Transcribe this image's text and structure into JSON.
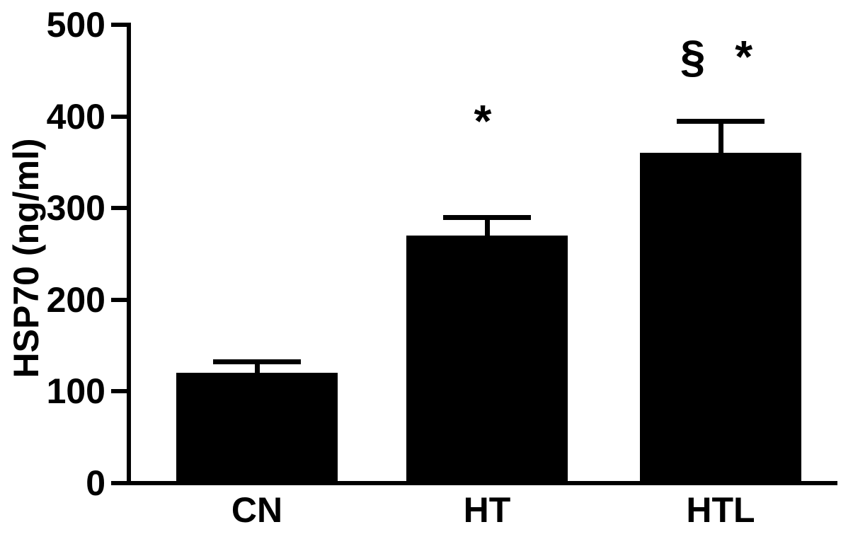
{
  "chart_data": {
    "type": "bar",
    "title": "",
    "xlabel": "",
    "ylabel": "HSP70 (ng/ml)",
    "ylim": [
      0,
      500
    ],
    "yticks": [
      0,
      100,
      200,
      300,
      400,
      500
    ],
    "categories": [
      "CN",
      "HT",
      "HTL"
    ],
    "values": [
      120,
      270,
      360
    ],
    "errors": [
      13,
      20,
      35
    ],
    "error_direction": "up",
    "annotations": [
      "",
      "*",
      "§ *"
    ],
    "annotation_y": [
      null,
      395,
      465
    ],
    "bar_color": "#000000",
    "axis_color": "#000000",
    "background": "#ffffff",
    "grid": false,
    "legend": false
  }
}
